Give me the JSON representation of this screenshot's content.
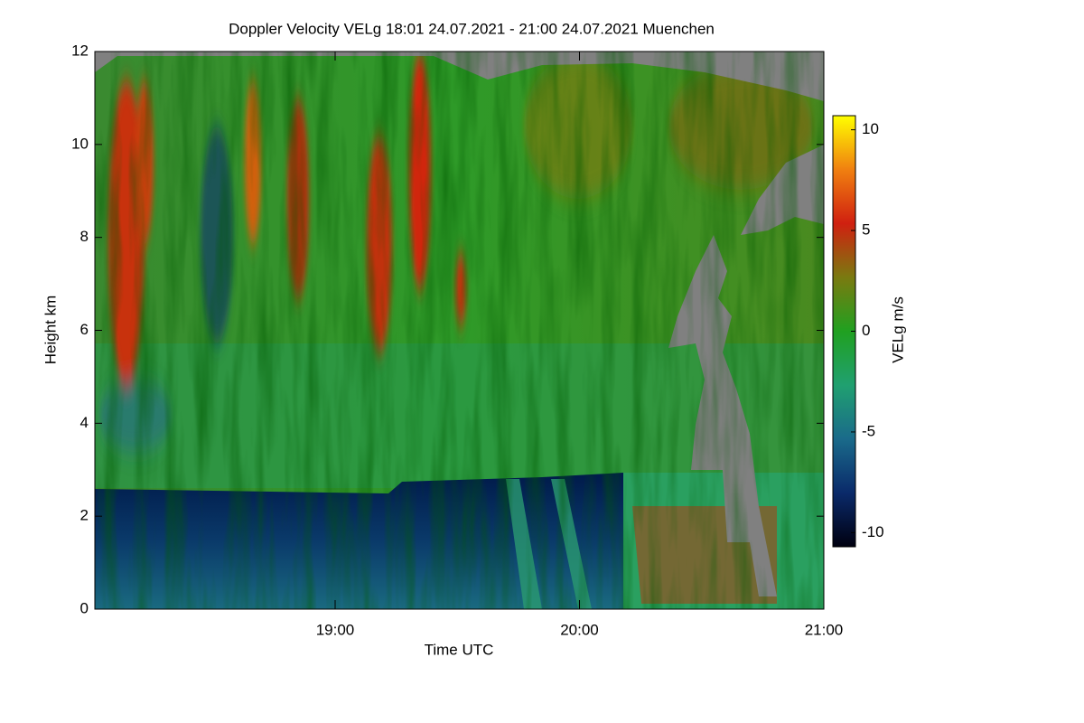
{
  "chart_data": {
    "type": "heatmap",
    "title": "Doppler Velocity VELg   18:01 24.07.2021 - 21:00 24.07.2021 Muenchen",
    "xlabel": "Time UTC",
    "ylabel": "Height km",
    "xlim": [
      18.0167,
      21.0
    ],
    "xticks": [
      {
        "value": 19,
        "label": "19:00"
      },
      {
        "value": 20,
        "label": "20:00"
      },
      {
        "value": 21,
        "label": "21:00"
      }
    ],
    "ylim": [
      0,
      12
    ],
    "yticks": [
      0,
      2,
      4,
      6,
      8,
      10,
      12
    ],
    "colorbar": {
      "label": "VELg m/s",
      "lim": [
        -10.7,
        10.7
      ],
      "ticks": [
        -10,
        -5,
        0,
        5,
        10
      ],
      "colors": [
        "#000010",
        "#0a2a6a",
        "#1a6a8a",
        "#20a070",
        "#20a020",
        "#7a7a10",
        "#d02010",
        "#f08010",
        "#ffff00"
      ]
    }
  }
}
